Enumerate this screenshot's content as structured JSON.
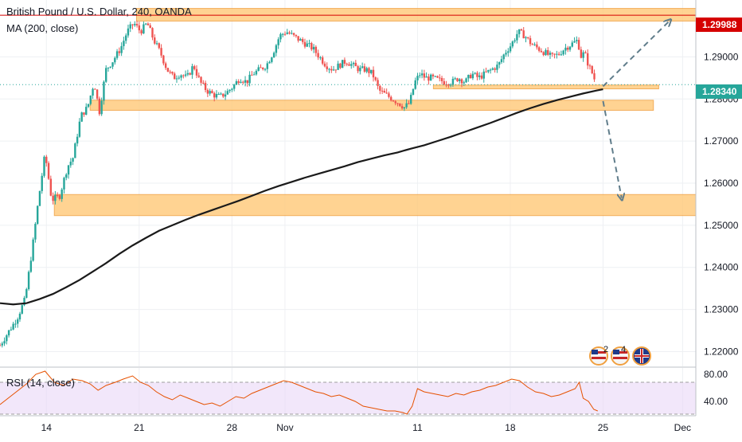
{
  "header": {
    "title": "British Pound / U.S. Dollar, 240, OANDA",
    "indicator_label": "MA (200, close)"
  },
  "rsi_panel": {
    "label": "RSI (14, close)",
    "levels": [
      70,
      30
    ],
    "tick_labels": [
      "80.00",
      "40.00"
    ]
  },
  "price_badges": {
    "upper": "1.29988",
    "current": "1.28340"
  },
  "flag_badges": {
    "badge_a_count": "2",
    "badge_b_count": "4"
  },
  "colors": {
    "up_candle": "#26a69a",
    "down_candle": "#ef5350",
    "zone_fill": "#ffcc80",
    "zone_border": "#f0a040",
    "ma_line": "#1a1a1a",
    "rsi_line": "#e65100",
    "rsi_band": "#ead7f7",
    "arrow": "#607d8b",
    "upper_badge": "#d50000",
    "current_badge": "#26a69a"
  },
  "chart_data": [
    {
      "type": "candlestick",
      "title": "British Pound / U.S. Dollar, 240, OANDA",
      "x_ticks": [
        {
          "label": "14",
          "day": 14
        },
        {
          "label": "21",
          "day": 21
        },
        {
          "label": "28",
          "day": 28
        },
        {
          "label": "Nov",
          "day": 32
        },
        {
          "label": "11",
          "day": 42
        },
        {
          "label": "18",
          "day": 49
        },
        {
          "label": "25",
          "day": 56
        },
        {
          "label": "Dec",
          "day": 62
        }
      ],
      "y_ticks": [
        "1.29000",
        "1.28000",
        "1.27000",
        "1.26000",
        "1.25000",
        "1.24000",
        "1.23000",
        "1.22000"
      ],
      "ylim": [
        1.2165,
        1.3035
      ],
      "xlim": [
        10.5,
        63
      ],
      "close_path": [
        [
          10.5,
          1.2215
        ],
        [
          11.8,
          1.228
        ],
        [
          12.4,
          1.2325
        ],
        [
          13.0,
          1.246
        ],
        [
          13.4,
          1.256
        ],
        [
          13.9,
          1.267
        ],
        [
          14.4,
          1.256
        ],
        [
          15.0,
          1.257
        ],
        [
          15.6,
          1.264
        ],
        [
          16.0,
          1.266
        ],
        [
          16.6,
          1.276
        ],
        [
          17.1,
          1.278
        ],
        [
          17.6,
          1.284
        ],
        [
          18.0,
          1.277
        ],
        [
          18.5,
          1.287
        ],
        [
          19.0,
          1.289
        ],
        [
          19.6,
          1.292
        ],
        [
          20.1,
          1.296
        ],
        [
          20.6,
          1.298
        ],
        [
          21.1,
          1.296
        ],
        [
          21.6,
          1.298
        ],
        [
          22.1,
          1.294
        ],
        [
          22.6,
          1.291
        ],
        [
          23.1,
          1.287
        ],
        [
          23.6,
          1.285
        ],
        [
          24.1,
          1.286
        ],
        [
          24.6,
          1.285
        ],
        [
          25.1,
          1.288
        ],
        [
          25.6,
          1.284
        ],
        [
          26.1,
          1.282
        ],
        [
          26.6,
          1.281
        ],
        [
          27.1,
          1.2805
        ],
        [
          27.6,
          1.2815
        ],
        [
          28.1,
          1.283
        ],
        [
          28.6,
          1.285
        ],
        [
          29.1,
          1.284
        ],
        [
          29.6,
          1.286
        ],
        [
          30.1,
          1.287
        ],
        [
          30.6,
          1.288
        ],
        [
          31.1,
          1.291
        ],
        [
          31.6,
          1.295
        ],
        [
          32.1,
          1.296
        ],
        [
          32.6,
          1.295
        ],
        [
          33.1,
          1.294
        ],
        [
          33.6,
          1.293
        ],
        [
          34.1,
          1.292
        ],
        [
          34.6,
          1.29
        ],
        [
          35.1,
          1.288
        ],
        [
          35.6,
          1.287
        ],
        [
          36.1,
          1.288
        ],
        [
          36.6,
          1.289
        ],
        [
          37.1,
          1.288
        ],
        [
          37.6,
          1.287
        ],
        [
          38.1,
          1.287
        ],
        [
          38.6,
          1.286
        ],
        [
          39.1,
          1.282
        ],
        [
          39.6,
          1.281
        ],
        [
          40.1,
          1.28
        ],
        [
          40.6,
          1.279
        ],
        [
          41.0,
          1.278
        ],
        [
          41.4,
          1.279
        ],
        [
          41.8,
          1.284
        ],
        [
          42.2,
          1.286
        ],
        [
          42.6,
          1.285
        ],
        [
          43.1,
          1.285
        ],
        [
          43.6,
          1.2845
        ],
        [
          44.1,
          1.284
        ],
        [
          44.6,
          1.284
        ],
        [
          45.1,
          1.285
        ],
        [
          45.6,
          1.284
        ],
        [
          46.1,
          1.286
        ],
        [
          46.6,
          1.285
        ],
        [
          47.1,
          1.286
        ],
        [
          47.6,
          1.287
        ],
        [
          48.1,
          1.288
        ],
        [
          48.6,
          1.291
        ],
        [
          49.1,
          1.293
        ],
        [
          49.6,
          1.296
        ],
        [
          50.1,
          1.295
        ],
        [
          50.6,
          1.293
        ],
        [
          51.1,
          1.292
        ],
        [
          51.6,
          1.291
        ],
        [
          52.1,
          1.29
        ],
        [
          52.6,
          1.2905
        ],
        [
          53.1,
          1.292
        ],
        [
          53.6,
          1.293
        ],
        [
          54.1,
          1.294
        ],
        [
          54.3,
          1.29
        ],
        [
          54.6,
          1.291
        ],
        [
          54.9,
          1.288
        ],
        [
          55.2,
          1.286
        ],
        [
          55.5,
          1.2834
        ]
      ],
      "ma200_line": [
        [
          10.5,
          1.2315
        ],
        [
          11.5,
          1.2312
        ],
        [
          12.5,
          1.2315
        ],
        [
          13.5,
          1.2325
        ],
        [
          14.5,
          1.2337
        ],
        [
          15.5,
          1.2353
        ],
        [
          16.5,
          1.237
        ],
        [
          17.5,
          1.239
        ],
        [
          18.5,
          1.241
        ],
        [
          19.5,
          1.2432
        ],
        [
          20.5,
          1.2452
        ],
        [
          21.5,
          1.247
        ],
        [
          22.5,
          1.2487
        ],
        [
          23.5,
          1.25
        ],
        [
          24.5,
          1.2513
        ],
        [
          25.5,
          1.2525
        ],
        [
          26.5,
          1.2536
        ],
        [
          27.5,
          1.2547
        ],
        [
          28.5,
          1.2558
        ],
        [
          29.5,
          1.257
        ],
        [
          30.5,
          1.2582
        ],
        [
          31.5,
          1.2593
        ],
        [
          32.5,
          1.2603
        ],
        [
          33.5,
          1.2613
        ],
        [
          34.5,
          1.2622
        ],
        [
          35.5,
          1.2631
        ],
        [
          36.5,
          1.264
        ],
        [
          37.5,
          1.265
        ],
        [
          38.5,
          1.2658
        ],
        [
          39.5,
          1.2666
        ],
        [
          40.5,
          1.2673
        ],
        [
          41.5,
          1.2682
        ],
        [
          42.5,
          1.269
        ],
        [
          43.5,
          1.27
        ],
        [
          44.5,
          1.271
        ],
        [
          45.5,
          1.2721
        ],
        [
          46.5,
          1.2732
        ],
        [
          47.5,
          1.2743
        ],
        [
          48.5,
          1.2755
        ],
        [
          49.5,
          1.2767
        ],
        [
          50.5,
          1.2778
        ],
        [
          51.5,
          1.2788
        ],
        [
          52.5,
          1.2797
        ],
        [
          53.5,
          1.2805
        ],
        [
          54.5,
          1.2813
        ],
        [
          55.5,
          1.282
        ],
        [
          56.0,
          1.2823
        ]
      ],
      "zones": [
        {
          "from_day": 20.8,
          "to_day": 63.0,
          "low": 1.2985,
          "high": 1.3015
        },
        {
          "from_day": 17.3,
          "to_day": 59.8,
          "low": 1.2773,
          "high": 1.2797
        },
        {
          "from_day": 43.2,
          "to_day": 60.2,
          "low": 1.2824,
          "high": 1.2833
        },
        {
          "from_day": 14.6,
          "to_day": 63.0,
          "low": 1.2523,
          "high": 1.2573
        }
      ],
      "upper_line_price": 1.29988,
      "current_price": 1.2834,
      "projection_arrows": [
        {
          "from": [
            56.0,
            1.283
          ],
          "to": [
            61.0,
            1.2985
          ]
        },
        {
          "from": [
            56.0,
            1.2795
          ],
          "to": [
            57.4,
            1.2565
          ]
        }
      ]
    },
    {
      "type": "line",
      "title": "RSI (14, close)",
      "ylim": [
        28,
        88
      ],
      "band": [
        30,
        70
      ],
      "series": [
        {
          "values": [
            [
              10.5,
              42
            ],
            [
              11.5,
              55
            ],
            [
              12.5,
              68
            ],
            [
              13.2,
              80
            ],
            [
              13.9,
              84
            ],
            [
              14.6,
              70
            ],
            [
              15.3,
              66
            ],
            [
              16.0,
              74
            ],
            [
              16.7,
              72
            ],
            [
              17.3,
              68
            ],
            [
              17.9,
              60
            ],
            [
              18.5,
              66
            ],
            [
              19.2,
              70
            ],
            [
              19.8,
              74
            ],
            [
              20.5,
              78
            ],
            [
              21.1,
              70
            ],
            [
              21.7,
              66
            ],
            [
              22.3,
              58
            ],
            [
              22.9,
              52
            ],
            [
              23.5,
              48
            ],
            [
              24.1,
              54
            ],
            [
              24.7,
              50
            ],
            [
              25.3,
              46
            ],
            [
              25.9,
              42
            ],
            [
              26.5,
              44
            ],
            [
              27.1,
              40
            ],
            [
              27.7,
              46
            ],
            [
              28.3,
              52
            ],
            [
              28.9,
              50
            ],
            [
              29.5,
              56
            ],
            [
              30.1,
              60
            ],
            [
              30.7,
              64
            ],
            [
              31.3,
              68
            ],
            [
              31.9,
              72
            ],
            [
              32.5,
              70
            ],
            [
              33.1,
              66
            ],
            [
              33.7,
              62
            ],
            [
              34.3,
              58
            ],
            [
              34.9,
              56
            ],
            [
              35.5,
              52
            ],
            [
              36.1,
              54
            ],
            [
              36.7,
              50
            ],
            [
              37.3,
              46
            ],
            [
              37.9,
              40
            ],
            [
              38.5,
              38
            ],
            [
              39.1,
              36
            ],
            [
              39.7,
              34
            ],
            [
              40.3,
              34
            ],
            [
              40.9,
              32
            ],
            [
              41.2,
              30
            ],
            [
              41.6,
              40
            ],
            [
              42.0,
              62
            ],
            [
              42.5,
              58
            ],
            [
              43.1,
              56
            ],
            [
              43.7,
              54
            ],
            [
              44.3,
              52
            ],
            [
              44.9,
              56
            ],
            [
              45.5,
              54
            ],
            [
              46.1,
              58
            ],
            [
              46.7,
              60
            ],
            [
              47.3,
              64
            ],
            [
              47.9,
              66
            ],
            [
              48.5,
              70
            ],
            [
              49.1,
              74
            ],
            [
              49.7,
              72
            ],
            [
              50.3,
              64
            ],
            [
              50.9,
              58
            ],
            [
              51.5,
              56
            ],
            [
              52.1,
              52
            ],
            [
              52.7,
              54
            ],
            [
              53.3,
              58
            ],
            [
              53.9,
              62
            ],
            [
              54.2,
              70
            ],
            [
              54.5,
              50
            ],
            [
              54.9,
              46
            ],
            [
              55.3,
              36
            ],
            [
              55.6,
              34
            ]
          ]
        }
      ]
    }
  ]
}
